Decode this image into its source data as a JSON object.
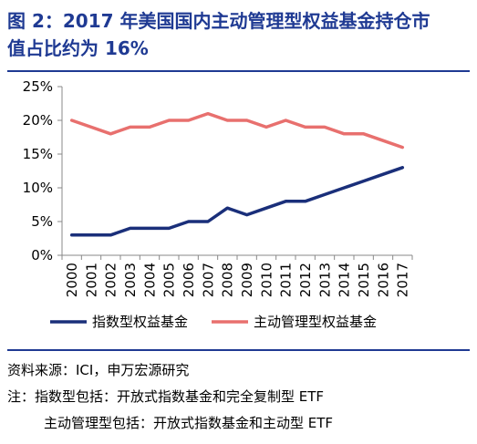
{
  "figure": {
    "title_line1": "图 2：2017 年美国国内主动管理型权益基金持仓市",
    "title_line2": "值占比约为 16%",
    "source": "资料来源：ICI，申万宏源研究",
    "note_line1": "注：指数型包括：开放式指数基金和完全复制型 ETF",
    "note_line2": "主动管理型包括：开放式指数基金和主动型 ETF"
  },
  "colors": {
    "title": "#1F3A93",
    "index_series": "#1A2F7A",
    "active_series": "#E8706E",
    "axis": "#888888"
  },
  "chart_data": {
    "type": "line",
    "title": "",
    "xlabel": "",
    "ylabel": "",
    "x": [
      "2000",
      "2001",
      "2002",
      "2003",
      "2004",
      "2005",
      "2006",
      "2007",
      "2008",
      "2009",
      "2010",
      "2011",
      "2012",
      "2013",
      "2014",
      "2015",
      "2016",
      "2017"
    ],
    "ylim": [
      0,
      25
    ],
    "yticks": [
      "0%",
      "5%",
      "10%",
      "15%",
      "20%",
      "25%"
    ],
    "grid": false,
    "legend": "bottom",
    "series": [
      {
        "name": "指数型权益基金",
        "color": "#1A2F7A",
        "values": [
          3,
          3,
          3,
          4,
          4,
          4,
          5,
          5,
          7,
          6,
          7,
          8,
          8,
          9,
          10,
          11,
          12,
          13
        ]
      },
      {
        "name": "主动管理型权益基金",
        "color": "#E8706E",
        "values": [
          20,
          19,
          18,
          19,
          19,
          20,
          20,
          21,
          20,
          20,
          19,
          20,
          19,
          19,
          18,
          18,
          17,
          16
        ]
      }
    ]
  }
}
